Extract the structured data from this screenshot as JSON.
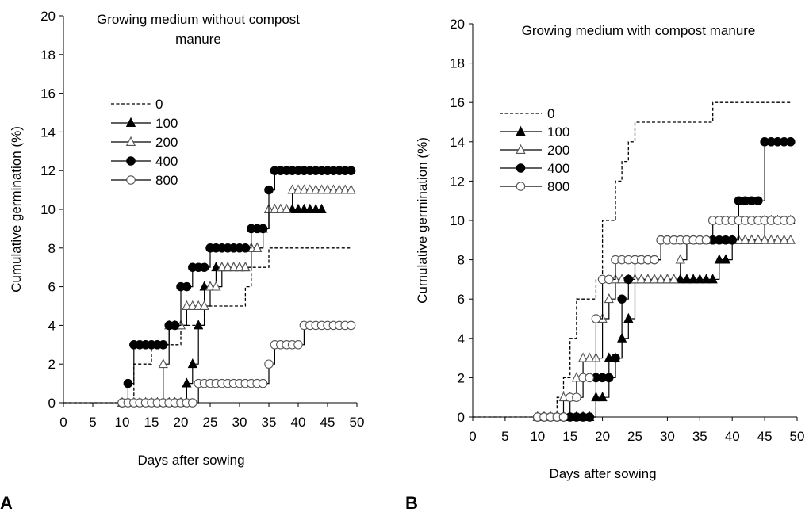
{
  "panel_labels": [
    "A",
    "B"
  ],
  "chart_data": [
    {
      "type": "line",
      "title": "Growing medium without compost manure",
      "title_lines": [
        "Growing medium without compost",
        "manure"
      ],
      "xlabel": "Days after sowing",
      "ylabel": "Cumulative germination (%)",
      "xlim": [
        0,
        50
      ],
      "ylim": [
        0,
        20
      ],
      "xticks": [
        0,
        5,
        10,
        15,
        20,
        25,
        30,
        35,
        40,
        45,
        50
      ],
      "yticks": [
        0,
        2,
        4,
        6,
        8,
        10,
        12,
        14,
        16,
        18,
        20
      ],
      "grid": false,
      "legend": "upper-left",
      "series": [
        {
          "name": "0",
          "marker": "none",
          "dash": "dashed",
          "x": [
            0,
            10,
            11,
            12,
            13,
            14,
            15,
            16,
            17,
            18,
            19,
            20,
            21,
            22,
            23,
            24,
            25,
            26,
            27,
            28,
            29,
            30,
            31,
            32,
            33,
            34,
            35,
            36,
            37,
            38,
            39,
            40,
            41,
            42,
            43,
            44,
            45,
            46,
            47,
            48,
            49
          ],
          "y": [
            0,
            0,
            0,
            2,
            2,
            2,
            3,
            3,
            3,
            3,
            3,
            4,
            4,
            4,
            4,
            5,
            5,
            5,
            5,
            5,
            5,
            5,
            6,
            7,
            7,
            7,
            8,
            8,
            8,
            8,
            8,
            8,
            8,
            8,
            8,
            8,
            8,
            8,
            8,
            8,
            8
          ]
        },
        {
          "name": "100",
          "marker": "triangle-filled",
          "x": [
            10,
            11,
            12,
            13,
            14,
            15,
            16,
            17,
            18,
            19,
            20,
            21,
            22,
            23,
            24,
            25,
            26,
            27,
            28,
            29,
            30,
            31,
            32,
            33,
            34,
            35,
            36,
            37,
            38,
            39,
            40,
            41,
            42,
            43,
            44
          ],
          "y": [
            0,
            0,
            0,
            0,
            0,
            0,
            0,
            0,
            0,
            0,
            0,
            1,
            2,
            4,
            6,
            6,
            7,
            7,
            7,
            7,
            7,
            7,
            8,
            8,
            9,
            10,
            10,
            10,
            10,
            10,
            10,
            10,
            10,
            10,
            10
          ]
        },
        {
          "name": "200",
          "marker": "triangle-open",
          "x": [
            10,
            11,
            12,
            13,
            14,
            15,
            16,
            17,
            18,
            19,
            20,
            21,
            22,
            23,
            24,
            25,
            26,
            27,
            28,
            29,
            30,
            31,
            32,
            33,
            34,
            35,
            36,
            37,
            38,
            39,
            40,
            41,
            42,
            43,
            44,
            45,
            46,
            47,
            48,
            49
          ],
          "y": [
            0,
            0,
            0,
            0,
            0,
            0,
            0,
            2,
            4,
            4,
            4,
            5,
            5,
            5,
            5,
            6,
            6,
            7,
            7,
            7,
            7,
            7,
            8,
            8,
            9,
            10,
            10,
            10,
            10,
            11,
            11,
            11,
            11,
            11,
            11,
            11,
            11,
            11,
            11,
            11
          ]
        },
        {
          "name": "400",
          "marker": "circle-filled",
          "x": [
            10,
            11,
            12,
            13,
            14,
            15,
            16,
            17,
            18,
            19,
            20,
            21,
            22,
            23,
            24,
            25,
            26,
            27,
            28,
            29,
            30,
            31,
            32,
            33,
            34,
            35,
            36,
            37,
            38,
            39,
            40,
            41,
            42,
            43,
            44,
            45,
            46,
            47,
            48,
            49
          ],
          "y": [
            0,
            1,
            3,
            3,
            3,
            3,
            3,
            3,
            4,
            4,
            6,
            6,
            7,
            7,
            7,
            8,
            8,
            8,
            8,
            8,
            8,
            8,
            9,
            9,
            9,
            11,
            12,
            12,
            12,
            12,
            12,
            12,
            12,
            12,
            12,
            12,
            12,
            12,
            12,
            12
          ]
        },
        {
          "name": "800",
          "marker": "circle-open",
          "x": [
            10,
            11,
            12,
            13,
            14,
            15,
            16,
            17,
            18,
            19,
            20,
            21,
            22,
            23,
            24,
            25,
            26,
            27,
            28,
            29,
            30,
            31,
            32,
            33,
            34,
            35,
            36,
            37,
            38,
            39,
            40,
            41,
            42,
            43,
            44,
            45,
            46,
            47,
            48,
            49
          ],
          "y": [
            0,
            0,
            0,
            0,
            0,
            0,
            0,
            0,
            0,
            0,
            0,
            0,
            0,
            1,
            1,
            1,
            1,
            1,
            1,
            1,
            1,
            1,
            1,
            1,
            1,
            2,
            3,
            3,
            3,
            3,
            3,
            4,
            4,
            4,
            4,
            4,
            4,
            4,
            4,
            4
          ]
        }
      ]
    },
    {
      "type": "line",
      "title": "Growing medium with compost manure",
      "title_lines": [
        "Growing medium with compost manure"
      ],
      "xlabel": "Days after sowing",
      "ylabel": "Cumulative germination (%)",
      "xlim": [
        0,
        50
      ],
      "ylim": [
        0,
        20
      ],
      "xticks": [
        0,
        5,
        10,
        15,
        20,
        25,
        30,
        35,
        40,
        45,
        50
      ],
      "yticks": [
        0,
        2,
        4,
        6,
        8,
        10,
        12,
        14,
        16,
        18,
        20
      ],
      "grid": false,
      "legend": "upper-left",
      "series": [
        {
          "name": "0",
          "marker": "none",
          "dash": "dashed",
          "x": [
            0,
            10,
            11,
            12,
            13,
            14,
            15,
            16,
            17,
            18,
            19,
            20,
            21,
            22,
            23,
            24,
            25,
            26,
            27,
            28,
            29,
            30,
            31,
            32,
            33,
            34,
            35,
            36,
            37,
            38,
            39,
            40,
            41,
            42,
            43,
            44,
            45,
            46,
            47,
            48,
            49
          ],
          "y": [
            0,
            0,
            0,
            0,
            1,
            2,
            4,
            6,
            6,
            6,
            7,
            10,
            10,
            12,
            13,
            14,
            15,
            15,
            15,
            15,
            15,
            15,
            15,
            15,
            15,
            15,
            15,
            15,
            16,
            16,
            16,
            16,
            16,
            16,
            16,
            16,
            16,
            16,
            16,
            16,
            16
          ]
        },
        {
          "name": "100",
          "marker": "triangle-filled",
          "x": [
            10,
            11,
            12,
            13,
            14,
            15,
            16,
            17,
            18,
            19,
            20,
            21,
            22,
            23,
            24,
            25,
            26,
            27,
            28,
            29,
            30,
            31,
            32,
            33,
            34,
            35,
            36,
            37,
            38,
            39,
            40,
            41,
            42,
            43,
            44,
            45,
            46,
            47,
            48,
            49
          ],
          "y": [
            0,
            0,
            0,
            0,
            0,
            0,
            0,
            0,
            0,
            1,
            1,
            3,
            3,
            4,
            5,
            7,
            7,
            7,
            7,
            7,
            7,
            7,
            7,
            7,
            7,
            7,
            7,
            7,
            8,
            8,
            9,
            9,
            9,
            9,
            9,
            10,
            10,
            10,
            10,
            10
          ]
        },
        {
          "name": "200",
          "marker": "triangle-open",
          "x": [
            10,
            11,
            12,
            13,
            14,
            15,
            16,
            17,
            18,
            19,
            20,
            21,
            22,
            23,
            24,
            25,
            26,
            27,
            28,
            29,
            30,
            31,
            32,
            33,
            34,
            35,
            36,
            37,
            38,
            39,
            40,
            41,
            42,
            43,
            44,
            45,
            46,
            47,
            48,
            49
          ],
          "y": [
            0,
            0,
            0,
            0,
            1,
            1,
            2,
            3,
            3,
            3,
            5,
            6,
            7,
            7,
            7,
            7,
            7,
            7,
            7,
            7,
            7,
            7,
            8,
            9,
            9,
            9,
            9,
            9,
            9,
            9,
            9,
            9,
            9,
            9,
            9,
            9,
            9,
            9,
            9,
            9
          ]
        },
        {
          "name": "400",
          "marker": "circle-filled",
          "x": [
            10,
            11,
            12,
            13,
            14,
            15,
            16,
            17,
            18,
            19,
            20,
            21,
            22,
            23,
            24,
            25,
            26,
            27,
            28,
            29,
            30,
            31,
            32,
            33,
            34,
            35,
            36,
            37,
            38,
            39,
            40,
            41,
            42,
            43,
            44,
            45,
            46,
            47,
            48,
            49
          ],
          "y": [
            0,
            0,
            0,
            0,
            0,
            0,
            0,
            0,
            0,
            2,
            2,
            2,
            3,
            6,
            7,
            8,
            8,
            8,
            8,
            9,
            9,
            9,
            9,
            9,
            9,
            9,
            9,
            9,
            9,
            9,
            9,
            11,
            11,
            11,
            11,
            14,
            14,
            14,
            14,
            14
          ]
        },
        {
          "name": "800",
          "marker": "circle-open",
          "x": [
            10,
            11,
            12,
            13,
            14,
            15,
            16,
            17,
            18,
            19,
            20,
            21,
            22,
            23,
            24,
            25,
            26,
            27,
            28,
            29,
            30,
            31,
            32,
            33,
            34,
            35,
            36,
            37,
            38,
            39,
            40,
            41,
            42,
            43,
            44,
            45,
            46,
            47,
            48,
            49
          ],
          "y": [
            0,
            0,
            0,
            0,
            0,
            1,
            1,
            2,
            2,
            5,
            7,
            7,
            8,
            8,
            8,
            8,
            8,
            8,
            8,
            9,
            9,
            9,
            9,
            9,
            9,
            9,
            9,
            10,
            10,
            10,
            10,
            10,
            10,
            10,
            10,
            10,
            10,
            10,
            10,
            10
          ]
        }
      ]
    }
  ]
}
